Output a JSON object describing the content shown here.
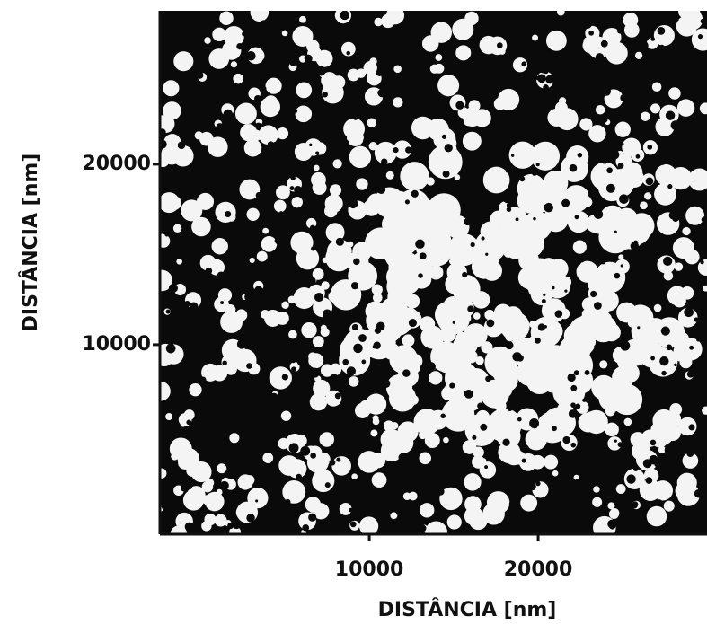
{
  "chart_data": {
    "type": "image",
    "x_label": "DISTÂNCIA  [nm]",
    "y_label": "DISTÂNCIA  [nm]",
    "xlim": [
      -2400,
      30000
    ],
    "ylim": [
      -500,
      28500
    ],
    "xticks": [
      10000,
      20000
    ],
    "yticks": [
      10000,
      20000
    ]
  }
}
